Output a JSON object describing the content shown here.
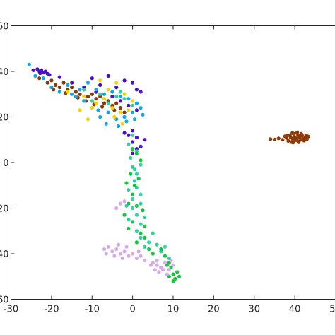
{
  "chart_data": {
    "type": "scatter",
    "title": "",
    "xlabel": "",
    "ylabel": "",
    "xlim": [
      -30,
      50
    ],
    "ylim": [
      -60,
      60
    ],
    "grid": false,
    "box": true,
    "legend": "none",
    "x_ticks": [
      -30,
      -20,
      -10,
      0,
      10,
      20,
      30,
      40,
      50
    ],
    "y_ticks": [
      -60,
      -40,
      -20,
      0,
      20,
      40,
      60
    ],
    "x_tick_labels": [
      "-30",
      "-20",
      "-10",
      "0",
      "10",
      "20",
      "30",
      "40",
      "50"
    ],
    "y_tick_labels": [
      "-60",
      "-40",
      "-20",
      "0",
      "20",
      "40",
      "60"
    ],
    "series": [
      {
        "color": "#4b0fc9",
        "points": [
          [
            -24.5,
            40.5
          ],
          [
            -23.5,
            41
          ],
          [
            -23,
            40
          ],
          [
            -22.5,
            40.5
          ],
          [
            -22,
            39.5
          ],
          [
            -21.5,
            40
          ],
          [
            -21,
            39
          ],
          [
            -22.8,
            39.2
          ],
          [
            -20.5,
            38.5
          ],
          [
            -18,
            37.5
          ],
          [
            -15,
            35
          ],
          [
            -12,
            33
          ],
          [
            -10,
            37
          ],
          [
            -8,
            34
          ],
          [
            -6,
            38
          ],
          [
            -4,
            33
          ],
          [
            -2,
            36
          ],
          [
            0,
            35
          ],
          [
            1,
            32
          ],
          [
            2,
            31
          ],
          [
            -9,
            31
          ],
          [
            -5,
            29
          ],
          [
            -3,
            27
          ],
          [
            -1,
            25
          ],
          [
            1,
            23
          ],
          [
            0,
            14
          ],
          [
            -1,
            12
          ],
          [
            1,
            11
          ],
          [
            0,
            9
          ],
          [
            2,
            7
          ],
          [
            3,
            10
          ],
          [
            -2,
            13
          ],
          [
            1,
            6
          ],
          [
            0,
            4
          ]
        ]
      },
      {
        "color": "#8b3a07",
        "points": [
          [
            -23,
            37
          ],
          [
            -21,
            35
          ],
          [
            -20,
            36
          ],
          [
            -19,
            34
          ],
          [
            -18,
            33
          ],
          [
            -17,
            35
          ],
          [
            -16,
            32
          ],
          [
            -15,
            33
          ],
          [
            -14,
            31
          ],
          [
            -13,
            30
          ],
          [
            -12,
            32
          ],
          [
            -11,
            29
          ],
          [
            -10,
            30
          ],
          [
            -9,
            28
          ],
          [
            -8,
            29
          ],
          [
            -7,
            26
          ],
          [
            -6,
            27
          ],
          [
            -5,
            25
          ],
          [
            -4,
            26
          ],
          [
            -3,
            24
          ],
          [
            -2,
            22
          ],
          [
            -19.5,
            32
          ],
          [
            -16.5,
            30.5
          ],
          [
            -13.5,
            28.5
          ],
          [
            -11.5,
            27
          ],
          [
            -9.5,
            25.5
          ],
          [
            -7.5,
            24.5
          ],
          [
            -4.5,
            23
          ],
          [
            34,
            10.3
          ],
          [
            35,
            10.1
          ],
          [
            36,
            10.6
          ],
          [
            37,
            10
          ],
          [
            37.6,
            11.5
          ],
          [
            38,
            10.8
          ],
          [
            38.4,
            9.5
          ],
          [
            38.8,
            12
          ],
          [
            39,
            11
          ],
          [
            39.2,
            9
          ],
          [
            39.5,
            10.4
          ],
          [
            39.8,
            12.6
          ],
          [
            40,
            11.2
          ],
          [
            40.2,
            9.8
          ],
          [
            40.5,
            10.5
          ],
          [
            40.8,
            12
          ],
          [
            41,
            9.3
          ],
          [
            41.2,
            11.2
          ],
          [
            41.5,
            10
          ],
          [
            41.8,
            11.8
          ],
          [
            42,
            10.4
          ],
          [
            42.3,
            9.6
          ],
          [
            42.6,
            11
          ],
          [
            43,
            10.3
          ],
          [
            43.3,
            11.4
          ],
          [
            39.6,
            8.8
          ],
          [
            40.9,
            8.9
          ],
          [
            38.2,
            11.8
          ],
          [
            39.4,
            13
          ],
          [
            40.6,
            13.2
          ],
          [
            41.6,
            12.6
          ],
          [
            42.8,
            12
          ]
        ]
      },
      {
        "color": "#0fa8e8",
        "points": [
          [
            -25.5,
            43
          ],
          [
            -24,
            38
          ],
          [
            -22,
            37
          ],
          [
            -20,
            33
          ],
          [
            -18,
            31
          ],
          [
            -16,
            34
          ],
          [
            -14,
            29
          ],
          [
            -12,
            27
          ],
          [
            -11,
            35
          ],
          [
            -10,
            24
          ],
          [
            -9,
            32
          ],
          [
            -8,
            20
          ],
          [
            -7,
            30
          ],
          [
            -6,
            22
          ],
          [
            -5,
            31
          ],
          [
            -4,
            19
          ],
          [
            -3,
            29
          ],
          [
            -2,
            20
          ],
          [
            -1,
            28
          ],
          [
            0,
            22
          ],
          [
            1,
            26
          ],
          [
            2,
            24
          ],
          [
            -6.5,
            17
          ],
          [
            -8.5,
            23
          ],
          [
            -3.5,
            16
          ],
          [
            -1.5,
            18
          ],
          [
            0.5,
            19
          ],
          [
            2.5,
            21
          ],
          [
            -13,
            32
          ],
          [
            -15,
            30
          ]
        ]
      },
      {
        "color": "#f5d400",
        "points": [
          [
            -16,
            31
          ],
          [
            -12,
            29
          ],
          [
            -10,
            24
          ],
          [
            -9,
            26
          ],
          [
            -8,
            36
          ],
          [
            -7,
            28
          ],
          [
            -6,
            32
          ],
          [
            -5,
            24
          ],
          [
            -4,
            35
          ],
          [
            -3,
            22
          ],
          [
            -2,
            30
          ],
          [
            -1,
            23
          ],
          [
            0,
            27
          ],
          [
            -11,
            19
          ],
          [
            -13,
            23
          ],
          [
            -4.5,
            20
          ],
          [
            -2.5,
            17
          ]
        ]
      },
      {
        "color": "#2fd3a3",
        "points": [
          [
            -12,
            32
          ],
          [
            -10,
            27
          ],
          [
            -8,
            30
          ],
          [
            -6,
            26
          ],
          [
            -4,
            29
          ],
          [
            -2,
            28
          ],
          [
            0,
            25
          ],
          [
            -3,
            31
          ],
          [
            0,
            12
          ],
          [
            -1,
            8
          ],
          [
            1,
            5
          ],
          [
            -0.5,
            2
          ],
          [
            0,
            -2
          ],
          [
            1,
            -5
          ],
          [
            2,
            -1
          ],
          [
            0.5,
            -8
          ],
          [
            -1,
            -12
          ],
          [
            0,
            -16
          ],
          [
            1,
            -11
          ],
          [
            2,
            -14
          ],
          [
            0,
            -20
          ],
          [
            1,
            -23
          ],
          [
            -1,
            -25
          ],
          [
            2,
            -27
          ],
          [
            3,
            -24
          ],
          [
            1,
            -30
          ],
          [
            2,
            -33
          ],
          [
            4,
            -35
          ],
          [
            5,
            -31
          ],
          [
            3,
            -37
          ],
          [
            6,
            -36
          ],
          [
            7,
            -39
          ],
          [
            8,
            -37
          ],
          [
            9,
            -42
          ],
          [
            2,
            -18
          ],
          [
            -1.5,
            -19
          ],
          [
            0.5,
            -3
          ]
        ]
      },
      {
        "color": "#12c83a",
        "points": [
          [
            0,
            -14
          ],
          [
            -1,
            -18
          ],
          [
            1,
            -19
          ],
          [
            -2,
            -23
          ],
          [
            0,
            -26
          ],
          [
            -1,
            -29
          ],
          [
            2,
            -31
          ],
          [
            1,
            -35
          ],
          [
            3,
            -33
          ],
          [
            4,
            -38
          ],
          [
            5,
            -40
          ],
          [
            6,
            -43
          ],
          [
            7,
            -38
          ],
          [
            8,
            -41
          ],
          [
            9,
            -44
          ],
          [
            9.5,
            -46
          ],
          [
            10,
            -49
          ],
          [
            11,
            -48
          ],
          [
            10.5,
            -51
          ],
          [
            11.5,
            -50
          ],
          [
            10,
            -52
          ],
          [
            9,
            -50
          ],
          [
            8.5,
            -45
          ],
          [
            1,
            4
          ],
          [
            0,
            6
          ],
          [
            2,
            1
          ],
          [
            -0.5,
            -5
          ],
          [
            0.5,
            -10
          ],
          [
            1.5,
            -7
          ],
          [
            -1.5,
            -9
          ],
          [
            3,
            -28
          ],
          [
            2.5,
            -21
          ]
        ]
      },
      {
        "color": "#d8acec",
        "points": [
          [
            -7,
            -38
          ],
          [
            -6,
            -37
          ],
          [
            -5,
            -39
          ],
          [
            -4,
            -38
          ],
          [
            -3,
            -40
          ],
          [
            -2,
            -39
          ],
          [
            -1,
            -41
          ],
          [
            0,
            -40
          ],
          [
            -3.5,
            -36
          ],
          [
            -1.5,
            -37
          ],
          [
            1,
            -42
          ],
          [
            2,
            -41
          ],
          [
            3,
            -43
          ],
          [
            1.5,
            -39
          ],
          [
            -6.5,
            -40
          ],
          [
            -4.5,
            -41
          ],
          [
            -2.5,
            -42
          ],
          [
            5,
            -44
          ],
          [
            6,
            -45
          ],
          [
            7,
            -46
          ],
          [
            8,
            -44
          ],
          [
            9,
            -47
          ],
          [
            10,
            -45
          ],
          [
            5.5,
            -47
          ],
          [
            6.5,
            -48
          ],
          [
            7.5,
            -47
          ],
          [
            8.5,
            -49
          ],
          [
            6,
            -43
          ],
          [
            4.5,
            -45
          ],
          [
            9.5,
            -43
          ],
          [
            -3,
            -18
          ],
          [
            -4,
            -20
          ],
          [
            -2,
            -17
          ]
        ]
      }
    ]
  }
}
